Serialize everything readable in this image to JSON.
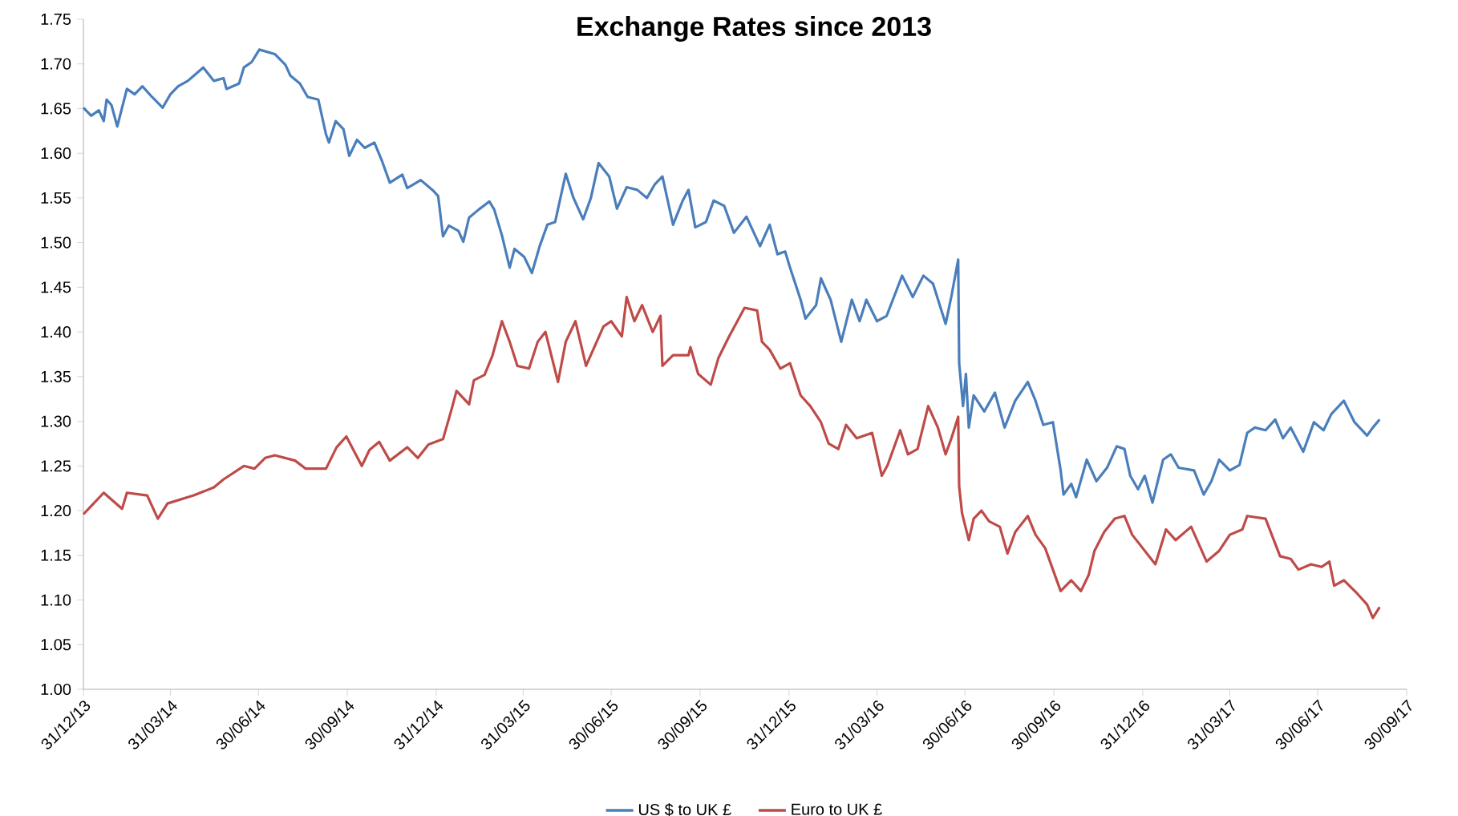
{
  "chart_data": {
    "type": "line",
    "title": "Exchange Rates since 2013",
    "xlim": [
      "2013-12-31",
      "2017-09-30"
    ],
    "xticks": [
      {
        "value": "2013-12-31",
        "label": "31/12/13"
      },
      {
        "value": "2014-03-31",
        "label": "31/03/14"
      },
      {
        "value": "2014-06-30",
        "label": "30/06/14"
      },
      {
        "value": "2014-09-30",
        "label": "30/09/14"
      },
      {
        "value": "2014-12-31",
        "label": "31/12/14"
      },
      {
        "value": "2015-03-31",
        "label": "31/03/15"
      },
      {
        "value": "2015-06-30",
        "label": "30/06/15"
      },
      {
        "value": "2015-09-30",
        "label": "30/09/15"
      },
      {
        "value": "2015-12-31",
        "label": "31/12/15"
      },
      {
        "value": "2016-03-31",
        "label": "31/03/16"
      },
      {
        "value": "2016-06-30",
        "label": "30/06/16"
      },
      {
        "value": "2016-09-30",
        "label": "30/09/16"
      },
      {
        "value": "2016-12-31",
        "label": "31/12/16"
      },
      {
        "value": "2017-03-31",
        "label": "31/03/17"
      },
      {
        "value": "2017-06-30",
        "label": "30/06/17"
      },
      {
        "value": "2017-09-30",
        "label": "30/09/17"
      }
    ],
    "ylim": [
      1.0,
      1.75
    ],
    "yticks": [
      {
        "value": 1.0,
        "label": "1.00"
      },
      {
        "value": 1.05,
        "label": "1.05"
      },
      {
        "value": 1.1,
        "label": "1.10"
      },
      {
        "value": 1.15,
        "label": "1.15"
      },
      {
        "value": 1.2,
        "label": "1.20"
      },
      {
        "value": 1.25,
        "label": "1.25"
      },
      {
        "value": 1.3,
        "label": "1.30"
      },
      {
        "value": 1.35,
        "label": "1.35"
      },
      {
        "value": 1.4,
        "label": "1.40"
      },
      {
        "value": 1.45,
        "label": "1.45"
      },
      {
        "value": 1.5,
        "label": "1.50"
      },
      {
        "value": 1.55,
        "label": "1.55"
      },
      {
        "value": 1.6,
        "label": "1.60"
      },
      {
        "value": 1.65,
        "label": "1.65"
      },
      {
        "value": 1.7,
        "label": "1.70"
      },
      {
        "value": 1.75,
        "label": "1.75"
      }
    ],
    "legend": "bottom",
    "series": [
      {
        "name": "US $ to UK £",
        "color": "#4a7ebb",
        "x": [
          "2013-12-31",
          "2014-01-08",
          "2014-01-16",
          "2014-01-21",
          "2014-01-24",
          "2014-01-29",
          "2014-02-04",
          "2014-02-14",
          "2014-02-22",
          "2014-03-02",
          "2014-03-12",
          "2014-03-23",
          "2014-03-31",
          "2014-04-08",
          "2014-04-18",
          "2014-05-04",
          "2014-05-15",
          "2014-05-25",
          "2014-05-28",
          "2014-06-10",
          "2014-06-15",
          "2014-06-23",
          "2014-07-01",
          "2014-07-17",
          "2014-07-28",
          "2014-08-02",
          "2014-08-12",
          "2014-08-20",
          "2014-08-31",
          "2014-09-08",
          "2014-09-11",
          "2014-09-18",
          "2014-09-26",
          "2014-10-02",
          "2014-10-10",
          "2014-10-18",
          "2014-10-28",
          "2014-11-05",
          "2014-11-13",
          "2014-11-26",
          "2014-12-01",
          "2014-12-15",
          "2014-12-28",
          "2015-01-02",
          "2015-01-07",
          "2015-01-13",
          "2015-01-23",
          "2015-01-28",
          "2015-02-03",
          "2015-02-13",
          "2015-02-24",
          "2015-03-01",
          "2015-03-09",
          "2015-03-17",
          "2015-03-22",
          "2015-04-01",
          "2015-04-09",
          "2015-04-17",
          "2015-04-25",
          "2015-05-03",
          "2015-05-14",
          "2015-05-22",
          "2015-06-01",
          "2015-06-09",
          "2015-06-17",
          "2015-06-28",
          "2015-07-06",
          "2015-07-16",
          "2015-07-27",
          "2015-08-06",
          "2015-08-14",
          "2015-08-22",
          "2015-09-02",
          "2015-09-12",
          "2015-09-18",
          "2015-09-25",
          "2015-10-06",
          "2015-10-14",
          "2015-10-25",
          "2015-11-04",
          "2015-11-17",
          "2015-12-01",
          "2015-12-11",
          "2015-12-19",
          "2015-12-27",
          "2016-01-01",
          "2016-01-12",
          "2016-01-17",
          "2016-01-28",
          "2016-02-02",
          "2016-02-12",
          "2016-02-23",
          "2016-03-05",
          "2016-03-13",
          "2016-03-20",
          "2016-03-31",
          "2016-04-10",
          "2016-04-26",
          "2016-05-07",
          "2016-05-18",
          "2016-05-28",
          "2016-06-10",
          "2016-06-16",
          "2016-06-23",
          "2016-06-24",
          "2016-06-28",
          "2016-07-01",
          "2016-07-04",
          "2016-07-09",
          "2016-07-20",
          "2016-07-31",
          "2016-08-10",
          "2016-08-21",
          "2016-09-03",
          "2016-09-11",
          "2016-09-19",
          "2016-09-29",
          "2016-10-07",
          "2016-10-10",
          "2016-10-18",
          "2016-10-23",
          "2016-11-03",
          "2016-11-13",
          "2016-11-24",
          "2016-12-04",
          "2016-12-12",
          "2016-12-18",
          "2016-12-26",
          "2017-01-02",
          "2017-01-10",
          "2017-01-21",
          "2017-01-29",
          "2017-02-06",
          "2017-02-22",
          "2017-03-04",
          "2017-03-12",
          "2017-03-20",
          "2017-03-31",
          "2017-04-10",
          "2017-04-18",
          "2017-04-26",
          "2017-05-07",
          "2017-05-17",
          "2017-05-25",
          "2017-06-02",
          "2017-06-15",
          "2017-06-26",
          "2017-07-06",
          "2017-07-14",
          "2017-07-27",
          "2017-08-07",
          "2017-08-20",
          "2017-08-26",
          "2017-09-02"
        ],
        "values": [
          1.651,
          1.642,
          1.648,
          1.636,
          1.66,
          1.654,
          1.63,
          1.672,
          1.666,
          1.675,
          1.663,
          1.651,
          1.666,
          1.675,
          1.681,
          1.696,
          1.681,
          1.684,
          1.672,
          1.678,
          1.696,
          1.702,
          1.716,
          1.711,
          1.699,
          1.687,
          1.678,
          1.663,
          1.66,
          1.621,
          1.612,
          1.636,
          1.627,
          1.597,
          1.615,
          1.606,
          1.612,
          1.591,
          1.567,
          1.576,
          1.561,
          1.57,
          1.558,
          1.552,
          1.507,
          1.519,
          1.513,
          1.501,
          1.528,
          1.537,
          1.546,
          1.537,
          1.508,
          1.472,
          1.493,
          1.484,
          1.466,
          1.496,
          1.52,
          1.523,
          1.577,
          1.55,
          1.526,
          1.55,
          1.589,
          1.574,
          1.538,
          1.562,
          1.559,
          1.55,
          1.565,
          1.574,
          1.52,
          1.547,
          1.559,
          1.517,
          1.523,
          1.547,
          1.541,
          1.511,
          1.529,
          1.496,
          1.52,
          1.487,
          1.49,
          1.472,
          1.436,
          1.415,
          1.43,
          1.46,
          1.436,
          1.389,
          1.436,
          1.412,
          1.436,
          1.412,
          1.418,
          1.463,
          1.439,
          1.463,
          1.454,
          1.409,
          1.44,
          1.481,
          1.365,
          1.317,
          1.353,
          1.293,
          1.329,
          1.311,
          1.332,
          1.293,
          1.323,
          1.344,
          1.323,
          1.296,
          1.299,
          1.245,
          1.218,
          1.23,
          1.215,
          1.257,
          1.233,
          1.248,
          1.272,
          1.269,
          1.239,
          1.224,
          1.239,
          1.209,
          1.257,
          1.263,
          1.248,
          1.245,
          1.218,
          1.233,
          1.257,
          1.245,
          1.251,
          1.287,
          1.293,
          1.29,
          1.302,
          1.281,
          1.293,
          1.266,
          1.299,
          1.29,
          1.308,
          1.323,
          1.299,
          1.284,
          1.293,
          1.302
        ]
      },
      {
        "name": "Euro to UK £",
        "color": "#be4b48",
        "x": [
          "2013-12-31",
          "2014-01-08",
          "2014-01-21",
          "2014-02-09",
          "2014-02-14",
          "2014-03-07",
          "2014-03-18",
          "2014-03-28",
          "2014-04-24",
          "2014-05-15",
          "2014-05-25",
          "2014-06-15",
          "2014-06-26",
          "2014-07-07",
          "2014-07-17",
          "2014-08-07",
          "2014-08-18",
          "2014-09-08",
          "2014-09-19",
          "2014-09-29",
          "2014-10-15",
          "2014-10-23",
          "2014-11-02",
          "2014-11-13",
          "2014-12-01",
          "2014-12-12",
          "2014-12-23",
          "2015-01-07",
          "2015-01-15",
          "2015-01-21",
          "2015-02-03",
          "2015-02-08",
          "2015-02-19",
          "2015-02-27",
          "2015-03-09",
          "2015-03-17",
          "2015-03-25",
          "2015-04-06",
          "2015-04-15",
          "2015-04-23",
          "2015-05-06",
          "2015-05-14",
          "2015-05-24",
          "2015-06-04",
          "2015-06-22",
          "2015-06-30",
          "2015-07-11",
          "2015-07-16",
          "2015-07-24",
          "2015-08-01",
          "2015-08-12",
          "2015-08-20",
          "2015-08-22",
          "2015-09-02",
          "2015-09-18",
          "2015-09-20",
          "2015-09-28",
          "2015-10-11",
          "2015-10-19",
          "2015-10-30",
          "2015-11-15",
          "2015-11-28",
          "2015-12-03",
          "2015-12-11",
          "2015-12-22",
          "2016-01-01",
          "2016-01-12",
          "2016-01-22",
          "2016-02-02",
          "2016-02-10",
          "2016-02-20",
          "2016-02-28",
          "2016-03-10",
          "2016-03-26",
          "2016-04-05",
          "2016-04-11",
          "2016-04-24",
          "2016-05-02",
          "2016-05-12",
          "2016-05-23",
          "2016-06-02",
          "2016-06-10",
          "2016-06-16",
          "2016-06-23",
          "2016-06-24",
          "2016-06-27",
          "2016-07-04",
          "2016-07-09",
          "2016-07-17",
          "2016-07-25",
          "2016-08-05",
          "2016-08-13",
          "2016-08-21",
          "2016-09-03",
          "2016-09-11",
          "2016-09-21",
          "2016-10-07",
          "2016-10-18",
          "2016-10-28",
          "2016-11-05",
          "2016-11-11",
          "2016-11-21",
          "2016-12-02",
          "2016-12-12",
          "2016-12-20",
          "2017-01-13",
          "2017-01-24",
          "2017-02-03",
          "2017-02-19",
          "2017-03-07",
          "2017-03-20",
          "2017-03-31",
          "2017-04-13",
          "2017-04-18",
          "2017-05-07",
          "2017-05-22",
          "2017-06-02",
          "2017-06-10",
          "2017-06-23",
          "2017-07-04",
          "2017-07-12",
          "2017-07-17",
          "2017-07-27",
          "2017-08-10",
          "2017-08-20",
          "2017-08-26",
          "2017-09-02"
        ],
        "values": [
          1.196,
          1.205,
          1.22,
          1.202,
          1.22,
          1.217,
          1.191,
          1.208,
          1.217,
          1.226,
          1.235,
          1.25,
          1.247,
          1.259,
          1.262,
          1.256,
          1.247,
          1.247,
          1.271,
          1.283,
          1.25,
          1.268,
          1.277,
          1.256,
          1.271,
          1.259,
          1.274,
          1.28,
          1.31,
          1.334,
          1.319,
          1.346,
          1.352,
          1.373,
          1.412,
          1.389,
          1.362,
          1.359,
          1.389,
          1.4,
          1.344,
          1.389,
          1.412,
          1.362,
          1.406,
          1.412,
          1.395,
          1.439,
          1.412,
          1.43,
          1.4,
          1.418,
          1.362,
          1.374,
          1.374,
          1.383,
          1.353,
          1.341,
          1.371,
          1.395,
          1.427,
          1.424,
          1.389,
          1.38,
          1.359,
          1.365,
          1.329,
          1.317,
          1.299,
          1.275,
          1.269,
          1.296,
          1.281,
          1.287,
          1.239,
          1.251,
          1.29,
          1.263,
          1.269,
          1.317,
          1.293,
          1.263,
          1.281,
          1.305,
          1.227,
          1.197,
          1.167,
          1.191,
          1.2,
          1.188,
          1.182,
          1.152,
          1.176,
          1.194,
          1.173,
          1.158,
          1.11,
          1.122,
          1.11,
          1.128,
          1.155,
          1.176,
          1.191,
          1.194,
          1.173,
          1.14,
          1.179,
          1.167,
          1.182,
          1.143,
          1.155,
          1.173,
          1.179,
          1.194,
          1.191,
          1.149,
          1.146,
          1.134,
          1.14,
          1.137,
          1.143,
          1.116,
          1.122,
          1.107,
          1.095,
          1.08,
          1.092
        ]
      }
    ]
  }
}
